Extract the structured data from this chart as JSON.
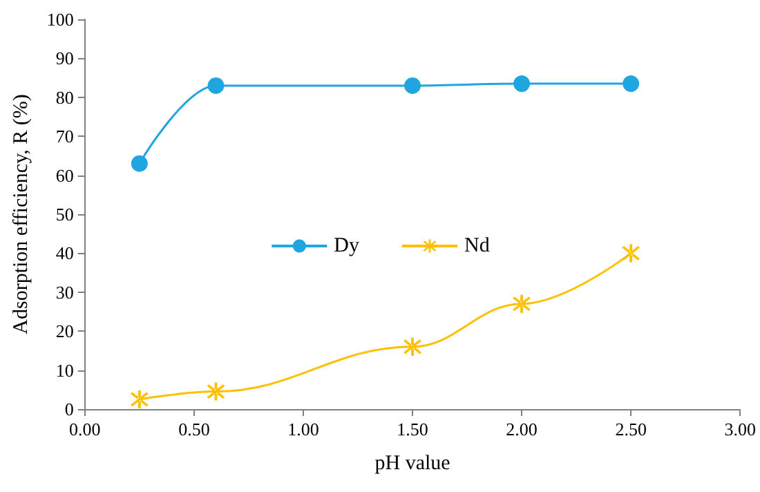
{
  "chart_data": {
    "type": "line",
    "xlabel": "pH value",
    "ylabel": "Adsorption efficiency, R (%)",
    "x": [
      0.25,
      0.6,
      1.5,
      2.0,
      2.5
    ],
    "series": [
      {
        "name": "Dy",
        "color": "#1fa6e0",
        "marker": "circle",
        "values": [
          63,
          83,
          83,
          83.5,
          83.5
        ]
      },
      {
        "name": "Nd",
        "color": "#ffc000",
        "marker": "cross",
        "values": [
          2.5,
          4.5,
          16,
          27,
          40
        ]
      }
    ],
    "xlim": [
      0,
      3
    ],
    "xticks": [
      {
        "value": 0,
        "label": "0.00"
      },
      {
        "value": 0.5,
        "label": "0.50"
      },
      {
        "value": 1,
        "label": "1.00"
      },
      {
        "value": 1.5,
        "label": "1.50"
      },
      {
        "value": 2,
        "label": "2.00"
      },
      {
        "value": 2.5,
        "label": "2.50"
      },
      {
        "value": 3,
        "label": "3.00"
      }
    ],
    "ylim": [
      0,
      100
    ],
    "yticks": [
      0,
      10,
      20,
      30,
      40,
      50,
      60,
      70,
      80,
      90,
      100
    ],
    "grid": false,
    "legend": "center",
    "line_style": "solid"
  }
}
